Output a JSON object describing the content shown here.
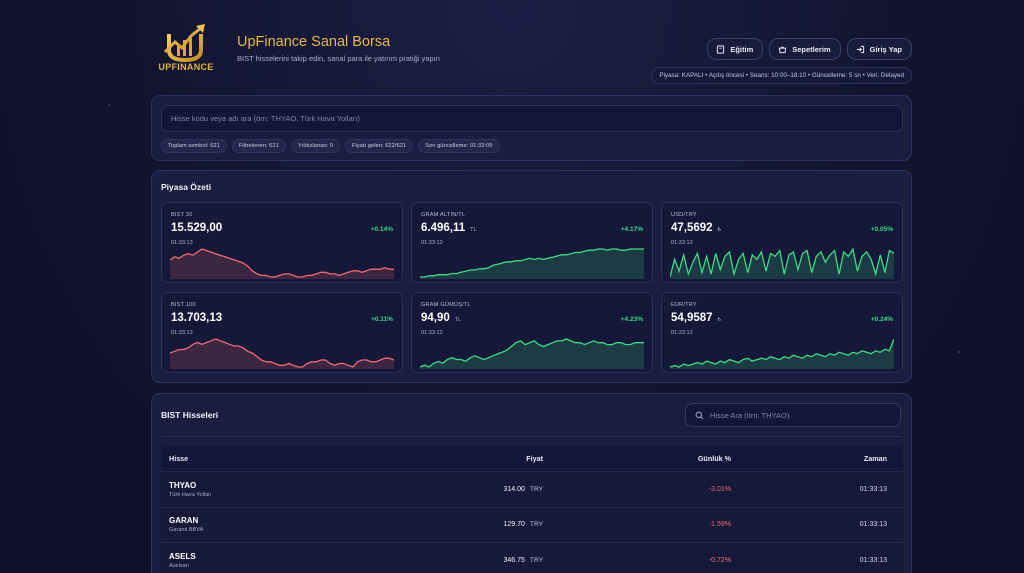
{
  "brand": {
    "logo_text": "UPFINANCE",
    "title": "UpFinance Sanal Borsa",
    "subtitle": "BIST hisselerini takip edin, sanal para ile yatırım pratiği yapın"
  },
  "header_buttons": {
    "education": "Eğitim",
    "baskets": "Sepetlerim",
    "login": "Giriş Yap"
  },
  "status_bar": "Piyasa: KAPALI • Açılış öncesi • Seans: 10:00–18:10 • Güncelleme: 5 sn • Veri: Delayed",
  "search": {
    "placeholder": "Hisse kodu veya adı ara (örn: THYAO, Türk Hava Yolları)"
  },
  "stats": {
    "total": "Toplam sembol: 621",
    "filtered": "Filtrelenen: 621",
    "starred": "Yıldızlanan: 0",
    "priced": "Fiyatı gelen: 622/621",
    "last_update": "Son güncelleme: 01:33:09"
  },
  "summary": {
    "title": "Piyasa Özeti",
    "cards": [
      {
        "name": "BIST 30",
        "value": "15.529,00",
        "unit": "",
        "change": "+0.14%",
        "time": "01:33:13",
        "trend": "down",
        "color": "#f06b74",
        "series": [
          28,
          30,
          29,
          31,
          32,
          31,
          33,
          35,
          34,
          33,
          32,
          31,
          30,
          29,
          28,
          27,
          26,
          24,
          21,
          19,
          18,
          18,
          17,
          17,
          18,
          19,
          19,
          18,
          17,
          17,
          18,
          18,
          19,
          20,
          20,
          19,
          19,
          18,
          19,
          20,
          21,
          21,
          20,
          21,
          22,
          22,
          22,
          23,
          22,
          22
        ]
      },
      {
        "name": "GRAM ALTIN/TL",
        "value": "6.496,11",
        "unit": "TL",
        "change": "+4.17%",
        "time": "01:33:12",
        "trend": "up",
        "color": "#3ddc84",
        "series": [
          6,
          6,
          7,
          7,
          8,
          8,
          8,
          9,
          9,
          10,
          11,
          12,
          12,
          13,
          13,
          14,
          16,
          17,
          18,
          19,
          19,
          20,
          20,
          21,
          22,
          21,
          22,
          21,
          22,
          23,
          24,
          25,
          25,
          26,
          27,
          27,
          28,
          29,
          29,
          30,
          30,
          29,
          30,
          30,
          29,
          29,
          30,
          30,
          30,
          30
        ]
      },
      {
        "name": "USD/TRY",
        "value": "47,5692",
        "unit": "₺",
        "change": "+0.05%",
        "time": "01:33:12",
        "trend": "up",
        "color": "#3ddc84",
        "series": [
          10,
          22,
          14,
          25,
          12,
          20,
          26,
          13,
          24,
          12,
          26,
          15,
          24,
          27,
          12,
          22,
          26,
          13,
          25,
          22,
          27,
          14,
          26,
          24,
          28,
          12,
          25,
          27,
          15,
          26,
          28,
          13,
          24,
          27,
          20,
          25,
          28,
          12,
          27,
          24,
          29,
          14,
          24,
          27,
          22,
          12,
          25,
          13,
          28,
          26
        ]
      },
      {
        "name": "BIST 100",
        "value": "13.703,13",
        "unit": "",
        "change": "+0.11%",
        "time": "01:33:13",
        "trend": "down",
        "color": "#f06b74",
        "series": [
          22,
          23,
          24,
          24,
          25,
          27,
          28,
          27,
          28,
          29,
          30,
          29,
          28,
          27,
          26,
          26,
          25,
          23,
          22,
          20,
          18,
          17,
          17,
          16,
          15,
          15,
          16,
          15,
          14,
          14,
          16,
          17,
          17,
          18,
          18,
          16,
          15,
          16,
          16,
          15,
          14,
          17,
          18,
          18,
          17,
          17,
          18,
          19,
          19,
          18
        ]
      },
      {
        "name": "GRAM GÜMÜŞ/TL",
        "value": "94,90",
        "unit": "TL",
        "change": "+4.23%",
        "time": "01:33:12",
        "trend": "up",
        "color": "#3ddc84",
        "series": [
          8,
          9,
          8,
          10,
          11,
          10,
          12,
          13,
          12,
          12,
          11,
          13,
          14,
          13,
          12,
          13,
          14,
          15,
          16,
          17,
          19,
          21,
          22,
          20,
          21,
          22,
          20,
          19,
          20,
          21,
          22,
          22,
          23,
          22,
          21,
          21,
          20,
          21,
          22,
          21,
          21,
          20,
          20,
          21,
          21,
          20,
          20,
          21,
          21,
          21
        ]
      },
      {
        "name": "EUR/TRY",
        "value": "54,9587",
        "unit": "₺",
        "change": "+0.24%",
        "time": "01:33:12",
        "trend": "up",
        "color": "#3ddc84",
        "series": [
          6,
          7,
          6,
          8,
          7,
          8,
          9,
          8,
          10,
          9,
          8,
          10,
          9,
          11,
          10,
          9,
          11,
          12,
          10,
          11,
          12,
          11,
          13,
          12,
          11,
          13,
          12,
          14,
          13,
          12,
          14,
          13,
          15,
          14,
          13,
          15,
          14,
          16,
          15,
          14,
          16,
          15,
          17,
          16,
          15,
          17,
          16,
          18,
          17,
          25
        ]
      }
    ]
  },
  "stocks": {
    "title": "BIST Hisseleri",
    "search_placeholder": "Hisse Ara (örn: THYAO)",
    "columns": {
      "stock": "Hisse",
      "price": "Fiyat",
      "change": "Günlük %",
      "time": "Zaman"
    },
    "rows": [
      {
        "symbol": "THYAO",
        "name": "Türk Hava Yolları",
        "price": "314.00",
        "currency": "TRY",
        "change": "-3.01%",
        "time": "01:33:13"
      },
      {
        "symbol": "GARAN",
        "name": "Garanti BBVA",
        "price": "129.70",
        "currency": "TRY",
        "change": "-1.59%",
        "time": "01:33:13"
      },
      {
        "symbol": "ASELS",
        "name": "Aselsan",
        "price": "346.75",
        "currency": "TRY",
        "change": "-0.72%",
        "time": "01:33:13"
      }
    ]
  }
}
